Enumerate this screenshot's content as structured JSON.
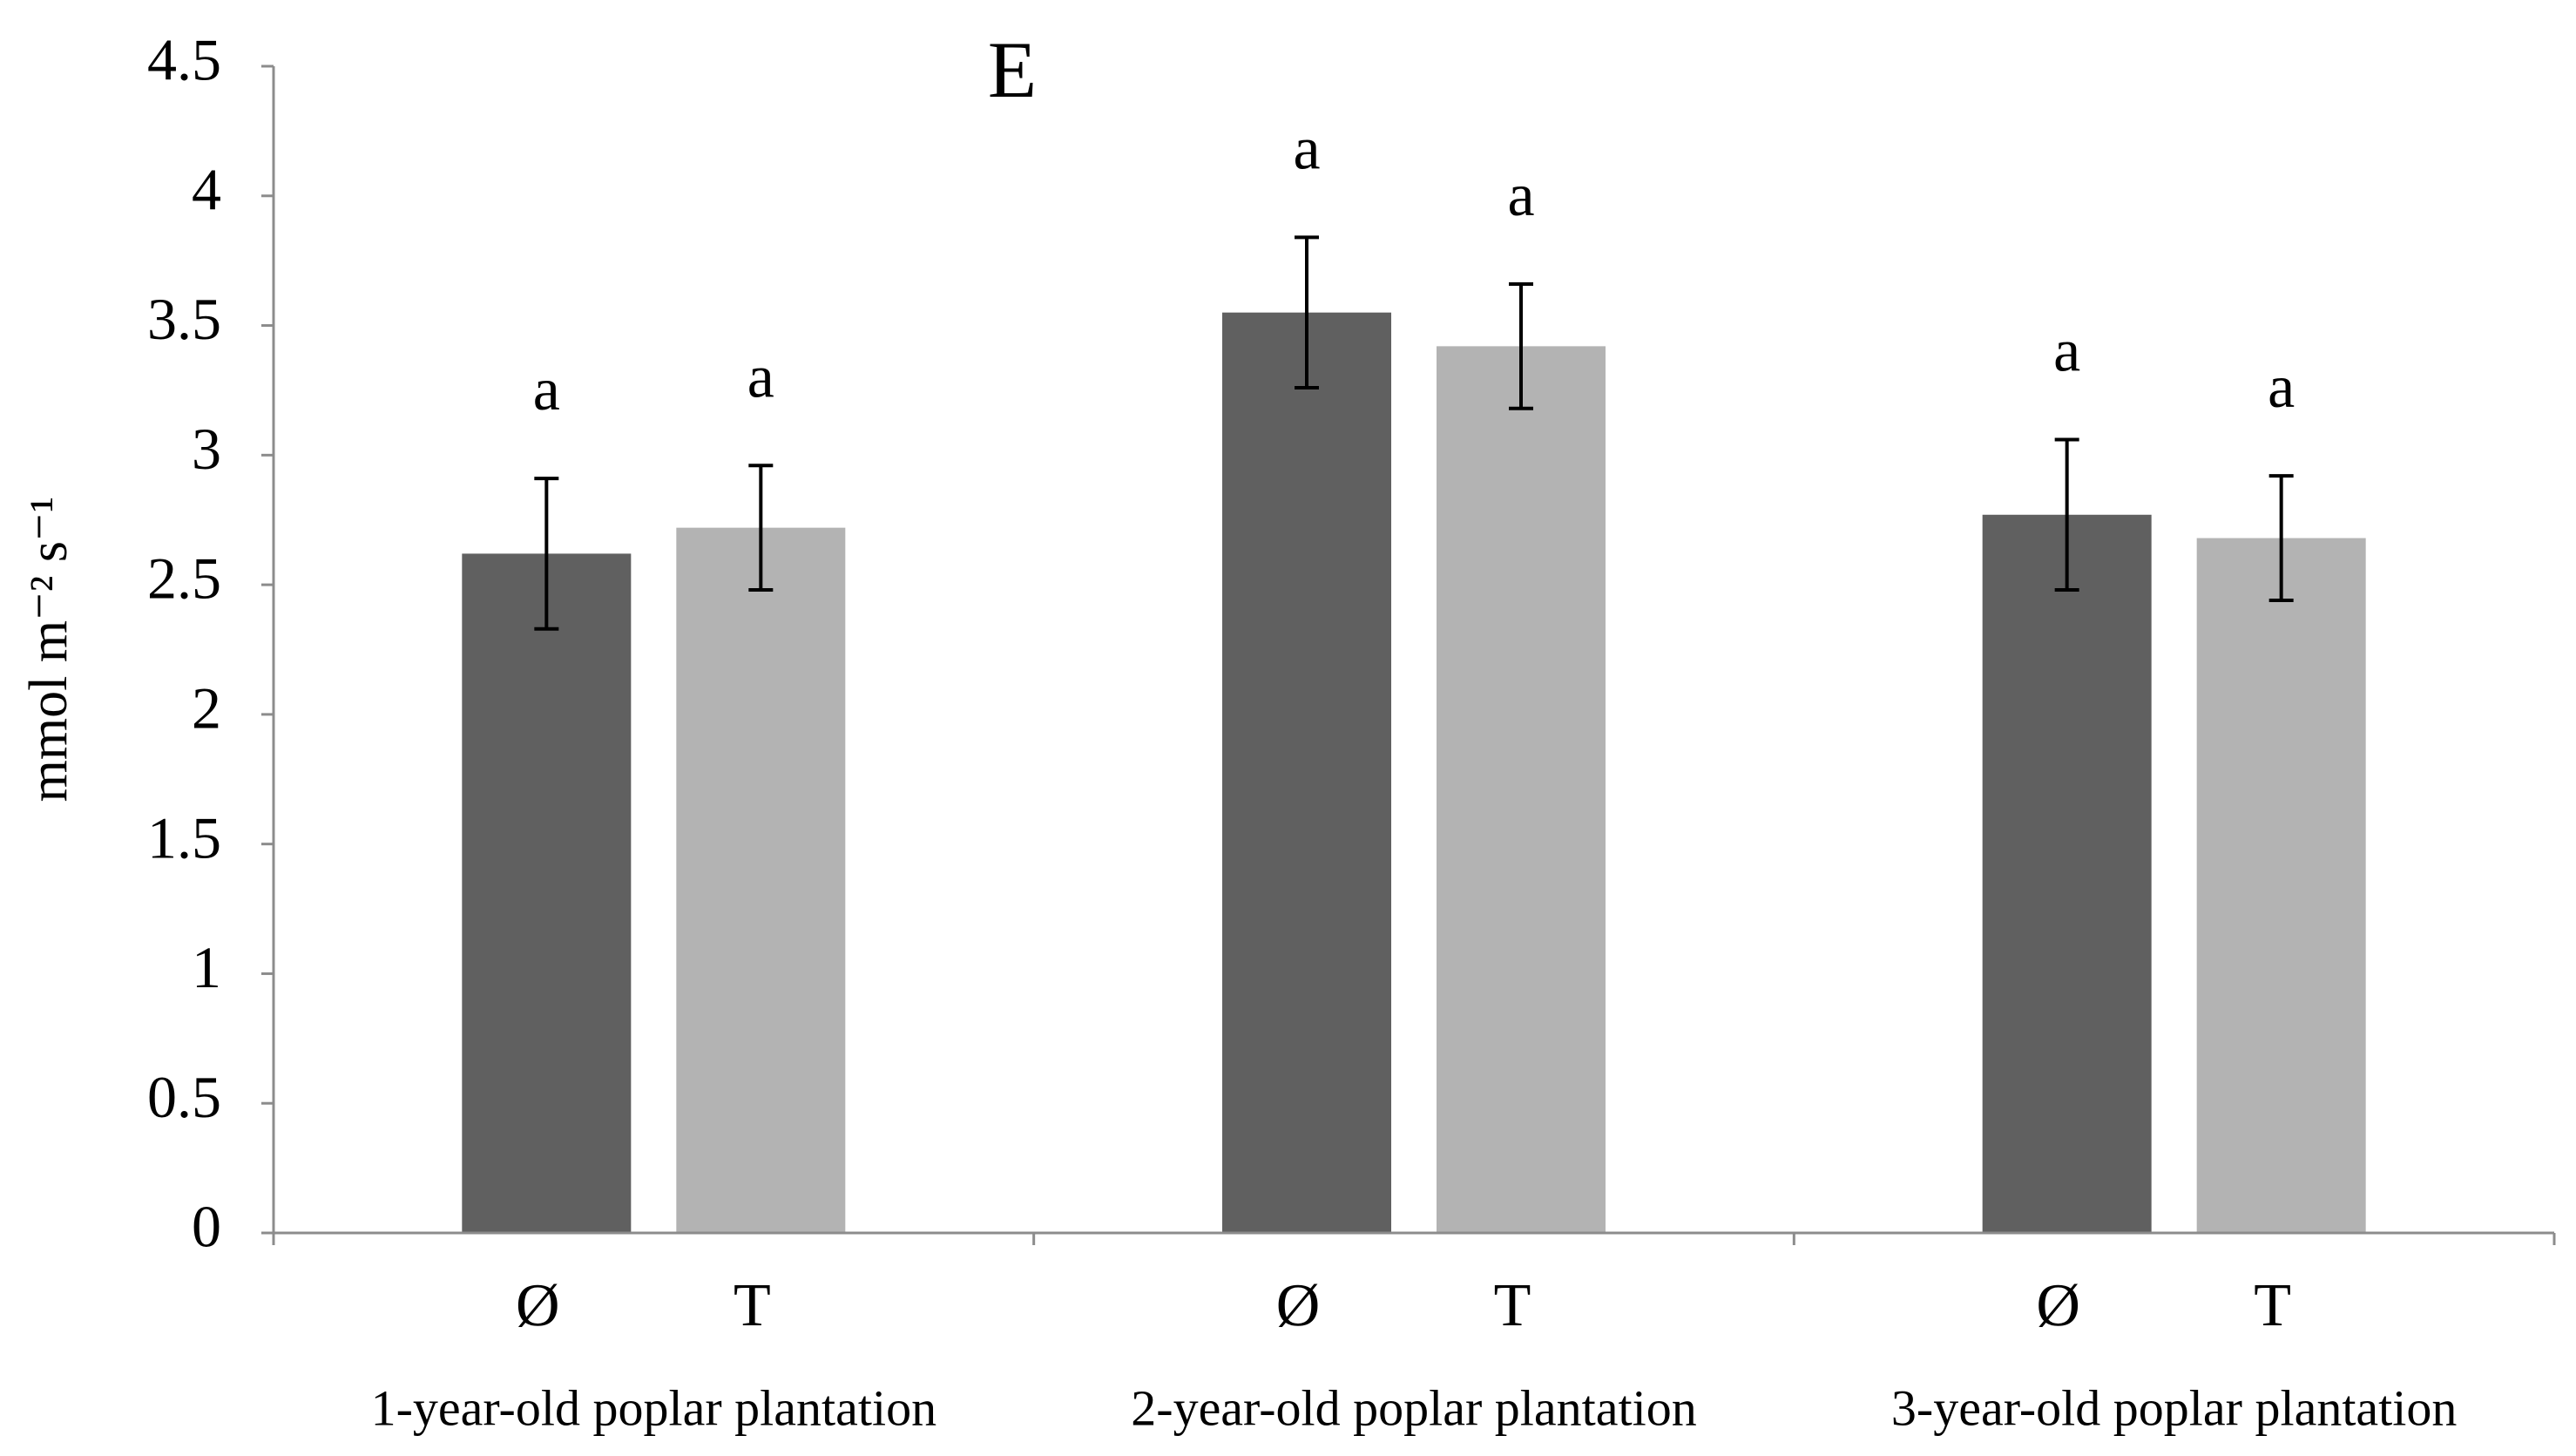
{
  "chart_data": {
    "type": "bar",
    "title": "E",
    "y_label": "mmol m⁻² s⁻¹",
    "categories": [
      "1-year-old poplar plantation",
      "2-year-old poplar plantation",
      "3-year-old poplar plantation"
    ],
    "series": [
      {
        "name": "Ø",
        "color": "#606060",
        "values": [
          2.62,
          3.55,
          2.77
        ],
        "errors": [
          0.29,
          0.29,
          0.29
        ],
        "letters": [
          "a",
          "a",
          "a"
        ]
      },
      {
        "name": "T",
        "color": "#b3b3b3",
        "values": [
          2.72,
          3.42,
          2.68
        ],
        "errors": [
          0.24,
          0.24,
          0.24
        ],
        "letters": [
          "a",
          "a",
          "a"
        ]
      }
    ],
    "ylim": [
      0,
      4.5
    ],
    "yticks": [
      0,
      0.5,
      1,
      1.5,
      2,
      2.5,
      3,
      3.5,
      4,
      4.5
    ],
    "grid": false
  }
}
